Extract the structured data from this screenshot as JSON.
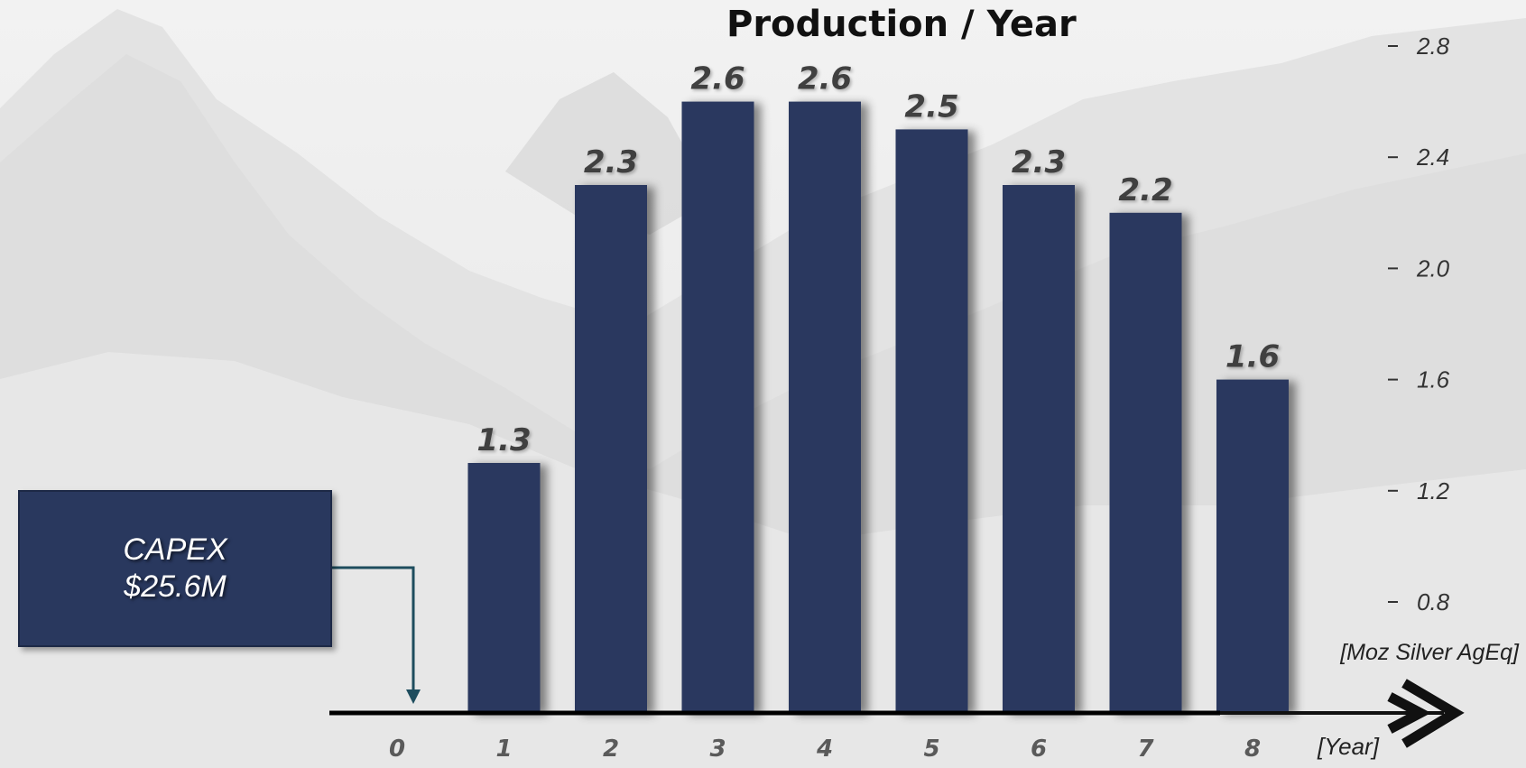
{
  "chart_data": {
    "type": "bar",
    "title": "Production / Year",
    "categories": [
      "1",
      "2",
      "3",
      "4",
      "5",
      "6",
      "7",
      "8"
    ],
    "x_ticks": [
      "0",
      "1",
      "2",
      "3",
      "4",
      "5",
      "6",
      "7",
      "8"
    ],
    "values": [
      1.3,
      2.3,
      2.6,
      2.6,
      2.5,
      2.3,
      2.2,
      1.6
    ],
    "data_labels": [
      "1.3",
      "2.3",
      "2.6",
      "2.6",
      "2.5",
      "2.3",
      "2.2",
      "1.6"
    ],
    "y_ticks": [
      "0.8",
      "1.2",
      "1.6",
      "2.0",
      "2.4",
      "2.8"
    ],
    "ylim": [
      0.8,
      2.8
    ],
    "ylabel": "[Moz Silver AgEq]",
    "xlabel": "[Year]",
    "y_axis_side": "right",
    "grid": false,
    "legend": "none",
    "bar_color": "#29385e"
  },
  "annotation": {
    "line1": "CAPEX",
    "line2": "$25.6M",
    "points_to_year": "0"
  }
}
